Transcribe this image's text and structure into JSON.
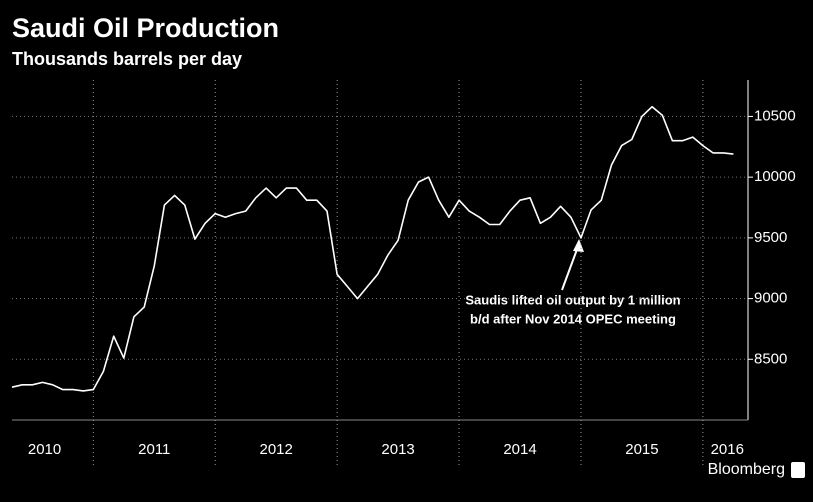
{
  "chart_data": {
    "type": "line",
    "title": "Saudi Oil Production",
    "subtitle": "Thousands barrels per day",
    "x": [
      2010.333,
      2010.417,
      2010.5,
      2010.583,
      2010.667,
      2010.75,
      2010.833,
      2010.917,
      2011,
      2011.083,
      2011.167,
      2011.25,
      2011.333,
      2011.417,
      2011.5,
      2011.583,
      2011.667,
      2011.75,
      2011.833,
      2011.917,
      2012,
      2012.083,
      2012.167,
      2012.25,
      2012.333,
      2012.417,
      2012.5,
      2012.583,
      2012.667,
      2012.75,
      2012.833,
      2012.917,
      2013,
      2013.083,
      2013.167,
      2013.25,
      2013.333,
      2013.417,
      2013.5,
      2013.583,
      2013.667,
      2013.75,
      2013.833,
      2013.917,
      2014,
      2014.083,
      2014.167,
      2014.25,
      2014.333,
      2014.417,
      2014.5,
      2014.583,
      2014.667,
      2014.75,
      2014.833,
      2014.917,
      2015,
      2015.083,
      2015.167,
      2015.25,
      2015.333,
      2015.417,
      2015.5,
      2015.583,
      2015.667,
      2015.75,
      2015.833,
      2015.917,
      2016,
      2016.083,
      2016.167,
      2016.25
    ],
    "series": [
      {
        "name": "Saudi Oil Production",
        "color": "#ffffff",
        "values": [
          8270,
          8290,
          8290,
          8310,
          8290,
          8250,
          8250,
          8240,
          8250,
          8400,
          8690,
          8510,
          8850,
          8930,
          9270,
          9770,
          9850,
          9770,
          9490,
          9620,
          9700,
          9670,
          9700,
          9720,
          9830,
          9910,
          9830,
          9910,
          9910,
          9810,
          9810,
          9720,
          9200,
          9100,
          9000,
          9100,
          9200,
          9360,
          9480,
          9810,
          9960,
          10000,
          9810,
          9670,
          9810,
          9720,
          9670,
          9610,
          9610,
          9720,
          9810,
          9830,
          9620,
          9670,
          9760,
          9670,
          9500,
          9730,
          9810,
          10100,
          10260,
          10310,
          10500,
          10580,
          10510,
          10300,
          10300,
          10330,
          10260,
          10200,
          10200,
          10190
        ]
      }
    ],
    "xlim": [
      2010.333,
      2016.37
    ],
    "xticks": [
      {
        "value": 2010.6,
        "label": "2010"
      },
      {
        "value": 2011.5,
        "label": "2011"
      },
      {
        "value": 2012.5,
        "label": "2012"
      },
      {
        "value": 2013.5,
        "label": "2013"
      },
      {
        "value": 2014.5,
        "label": "2014"
      },
      {
        "value": 2015.5,
        "label": "2015"
      },
      {
        "value": 2016.2,
        "label": "2016"
      }
    ],
    "xgrid": [
      2011,
      2012,
      2013,
      2014,
      2015,
      2016
    ],
    "ylim": [
      8000,
      10800
    ],
    "yticks": [
      8500,
      9000,
      9500,
      10000,
      10500
    ],
    "grid": true,
    "annotation": [
      "Saudis lifted oil output by 1 million",
      "b/d after Nov 2014 OPEC meeting"
    ],
    "source": "Bloomberg"
  }
}
